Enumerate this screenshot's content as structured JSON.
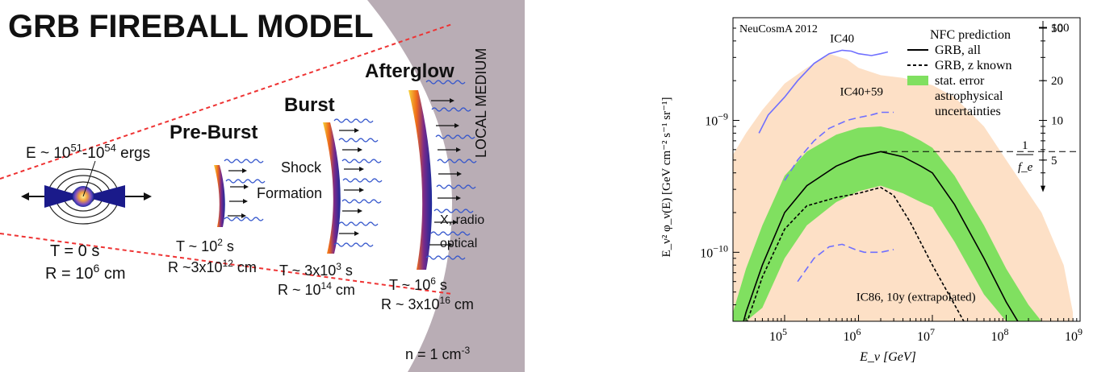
{
  "diagram": {
    "title": "GRB FIREBALL MODEL",
    "energy": {
      "prefix": "E ~ 10",
      "exp1": "51",
      "mid": "-10",
      "exp2": "54",
      "suffix": " ergs"
    },
    "stages": {
      "preburst": "Pre-Burst",
      "burst": "Burst",
      "afterglow": "Afterglow",
      "shock_line1": "Shock",
      "shock_line2": "Formation",
      "local_medium": "LOCAL MEDIUM",
      "xradio": "X, radio",
      "optical": "optical"
    },
    "times": {
      "t0": {
        "t": "T = 0 s",
        "r_base": "R = 10",
        "r_exp": "6",
        "r_unit": " cm"
      },
      "t1": {
        "t_base": "T ~ 10",
        "t_exp": "2",
        "t_unit": " s",
        "r_base": "R ~3x10",
        "r_exp": "12",
        "r_unit": " cm"
      },
      "t2": {
        "t_base": "T ~ 3x10",
        "t_exp": "3",
        "t_unit": " s",
        "r_base": "R ~ 10",
        "r_exp": "14",
        "r_unit": " cm"
      },
      "t3": {
        "t_base": "T ~ 10",
        "t_exp": "6",
        "t_unit": " s",
        "r_base": "R ~ 3x10",
        "r_exp": "16",
        "r_unit": " cm"
      }
    },
    "density": {
      "base": "n = 1 cm",
      "exp": "-3"
    }
  },
  "chart_data": {
    "type": "area",
    "annotation": "NeuCosmA 2012",
    "xlabel": "E_ν [GeV]",
    "ylabel": "E_ν² φ_ν(E) [GeV cm⁻² s⁻¹ sr⁻¹]",
    "x_scale": "log",
    "y_scale": "log",
    "xlim": [
      20000,
      1000000000
    ],
    "ylim": [
      3e-11,
      6e-09
    ],
    "x_ticks": [
      {
        "v": 100000,
        "label": "10",
        "exp": "5"
      },
      {
        "v": 1000000,
        "label": "10",
        "exp": "6"
      },
      {
        "v": 10000000,
        "label": "10",
        "exp": "7"
      },
      {
        "v": 100000000,
        "label": "10",
        "exp": "8"
      },
      {
        "v": 1000000000,
        "label": "10",
        "exp": "9"
      }
    ],
    "y_ticks": [
      {
        "v": 1e-09,
        "label": "10",
        "exp": "−9"
      },
      {
        "v": 1e-10,
        "label": "10",
        "exp": "−10"
      }
    ],
    "right_axis": {
      "label_num": "1",
      "label_den": "f_e",
      "ticks": [
        {
          "y": 1e-08,
          "label": "100"
        },
        {
          "y": 5e-09,
          "label": "50"
        },
        {
          "y": 2e-09,
          "label": "20"
        },
        {
          "y": 1e-09,
          "label": "10"
        },
        {
          "y": 5e-10,
          "label": "5"
        }
      ]
    },
    "legend": {
      "title": "NFC prediction",
      "position": "top-right",
      "entries": [
        {
          "label": "GRB, all",
          "style": "solid"
        },
        {
          "label": "GRB, z known",
          "style": "dashed"
        },
        {
          "label": "stat. error",
          "color": "#80e060"
        },
        {
          "label": "astrophysical",
          "label2": "uncertainties",
          "color": "#fde0c6"
        }
      ]
    },
    "series": [
      {
        "name": "GRB, all",
        "style": "solid",
        "color": "#000000",
        "x": [
          20000,
          30000,
          50000,
          100000,
          200000,
          500000,
          1000000,
          2000000,
          4000000,
          7000000,
          10000000,
          20000000,
          50000000,
          100000000,
          200000000
        ],
        "y": [
          1.5e-11,
          3.5e-11,
          8e-11,
          2e-10,
          3.2e-10,
          4.5e-10,
          5.3e-10,
          5.8e-10,
          5.3e-10,
          4.5e-10,
          4e-10,
          2.3e-10,
          9e-11,
          4.2e-11,
          2.2e-11
        ]
      },
      {
        "name": "GRB, z known",
        "style": "dashed",
        "color": "#000000",
        "x": [
          20000,
          30000,
          50000,
          100000,
          200000,
          500000,
          1000000,
          2000000,
          3000000,
          5000000,
          10000000,
          20000000,
          40000000
        ],
        "y": [
          1.2e-11,
          2.8e-11,
          6.5e-11,
          1.5e-10,
          2.25e-10,
          2.6e-10,
          2.8e-10,
          3.1e-10,
          2.7e-10,
          1.7e-10,
          8e-11,
          4e-11,
          2e-11
        ]
      },
      {
        "name": "IC40",
        "style": "solid",
        "color": "#6f6fff",
        "x": [
          45000,
          60000,
          100000,
          150000,
          250000,
          400000,
          600000,
          800000,
          1000000,
          1500000,
          2000000,
          2500000
        ],
        "y": [
          8e-10,
          1.1e-09,
          1.5e-09,
          2e-09,
          2.7e-09,
          3.2e-09,
          3.4e-09,
          3.35e-09,
          3.2e-09,
          3.1e-09,
          3.2e-09,
          3.3e-09
        ]
      },
      {
        "name": "IC40+59",
        "style": "dashed",
        "color": "#6f6fff",
        "x": [
          100000,
          150000,
          250000,
          400000,
          700000,
          1000000,
          1500000,
          2000000,
          3000000
        ],
        "y": [
          3.5e-10,
          5e-10,
          7e-10,
          8.7e-10,
          1e-09,
          1.05e-09,
          1.1e-09,
          1.15e-09,
          1.15e-09
        ]
      },
      {
        "name": "IC86, 10y (extrapolated)",
        "style": "dashed",
        "color": "#6f6fff",
        "x": [
          150000,
          250000,
          400000,
          600000,
          900000,
          1200000,
          2000000,
          3000000
        ],
        "y": [
          6e-11,
          9e-11,
          1.1e-10,
          1.15e-10,
          1.05e-10,
          1e-10,
          1e-10,
          1.05e-10
        ]
      }
    ],
    "bands": [
      {
        "name": "astrophysical uncertainties",
        "color": "#fde0c6",
        "x": [
          20000,
          30000,
          50000,
          100000,
          200000,
          400000,
          700000,
          1000000,
          2000000,
          4000000,
          10000000,
          20000000,
          50000000,
          100000000,
          300000000,
          600000000,
          800000000
        ],
        "upper": [
          5.5e-10,
          8e-10,
          1.2e-09,
          1.9e-09,
          2.5e-09,
          3.2e-09,
          2.9e-09,
          2.5e-09,
          2.2e-09,
          2.1e-09,
          1.85e-09,
          1.5e-09,
          9e-10,
          5e-10,
          2e-10,
          8e-11,
          3.5e-11
        ],
        "lower": [
          3e-11,
          3e-11,
          3e-11,
          3e-11,
          3e-11,
          3e-11,
          3e-11,
          3e-11,
          3e-11,
          3e-11,
          3e-11,
          3e-11,
          3e-11,
          3e-11,
          3e-11,
          3e-11,
          3e-11
        ]
      },
      {
        "name": "stat. error",
        "color": "#80e060",
        "x": [
          20000,
          30000,
          50000,
          100000,
          200000,
          500000,
          1000000,
          2000000,
          4000000,
          7000000,
          10000000,
          20000000,
          50000000,
          100000000,
          200000000,
          300000000
        ],
        "upper": [
          3.5e-11,
          7.5e-11,
          1.6e-10,
          3.8e-10,
          5.8e-10,
          7.8e-10,
          8.8e-10,
          9e-10,
          8.2e-10,
          7e-10,
          6.2e-10,
          3.8e-10,
          1.6e-10,
          7.5e-11,
          4e-11,
          3e-11
        ],
        "lower": [
          3e-11,
          3e-11,
          3.8e-11,
          9e-11,
          1.6e-10,
          2.4e-10,
          2.9e-10,
          3.2e-10,
          2.8e-10,
          2.4e-10,
          2.2e-10,
          1.2e-10,
          4.8e-11,
          3e-11,
          3e-11,
          3e-11
        ]
      }
    ],
    "reference_line": {
      "y": 5.8e-10,
      "x_from": 2000000,
      "style": "dashed"
    },
    "series_labels": [
      {
        "text": "IC40",
        "x": 600000,
        "y": 3.9e-09
      },
      {
        "text": "IC40+59",
        "x": 1100000,
        "y": 1.55e-09
      },
      {
        "text": "IC86, 10y (extrapolated)",
        "x": 6000000,
        "y": 4.3e-11
      }
    ]
  }
}
